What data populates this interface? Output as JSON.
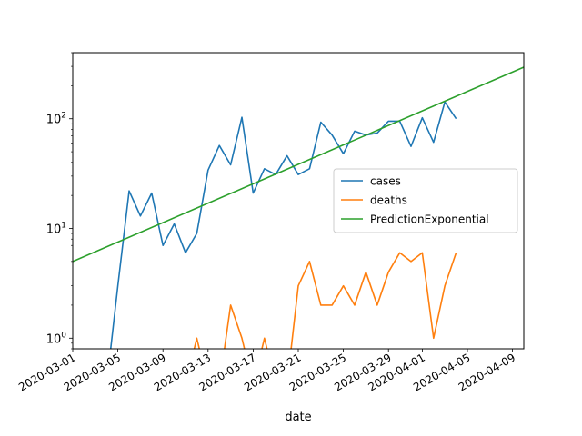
{
  "chart_data": {
    "type": "line",
    "xlabel": "date",
    "ylabel": "",
    "x_scale": "date",
    "y_scale": "log",
    "xlim": [
      "2020-03-01",
      "2020-04-10"
    ],
    "ylim": [
      0.8,
      400
    ],
    "x_ticks": [
      "2020-03-01",
      "2020-03-05",
      "2020-03-09",
      "2020-03-13",
      "2020-03-17",
      "2020-03-21",
      "2020-03-25",
      "2020-03-29",
      "2020-04-01",
      "2020-04-05",
      "2020-04-09"
    ],
    "y_ticks": [
      {
        "value": 1,
        "base": "10",
        "exp": "0"
      },
      {
        "value": 10,
        "base": "10",
        "exp": "1"
      },
      {
        "value": 100,
        "base": "10",
        "exp": "2"
      }
    ],
    "grid": false,
    "legend_position": "center-right",
    "series": [
      {
        "name": "cases",
        "color": "#1f77b4",
        "x": [
          "2020-03-04",
          "2020-03-05",
          "2020-03-06",
          "2020-03-07",
          "2020-03-08",
          "2020-03-09",
          "2020-03-10",
          "2020-03-11",
          "2020-03-12",
          "2020-03-13",
          "2020-03-14",
          "2020-03-15",
          "2020-03-16",
          "2020-03-17",
          "2020-03-18",
          "2020-03-19",
          "2020-03-20",
          "2020-03-21",
          "2020-03-22",
          "2020-03-23",
          "2020-03-24",
          "2020-03-25",
          "2020-03-26",
          "2020-03-27",
          "2020-03-28",
          "2020-03-29",
          "2020-03-30",
          "2020-03-31",
          "2020-04-01",
          "2020-04-02",
          "2020-04-03",
          "2020-04-04"
        ],
        "values": [
          0,
          3,
          22,
          13,
          21,
          7,
          11,
          6,
          9,
          34,
          57,
          38,
          103,
          21,
          35,
          31,
          46,
          31,
          35,
          93,
          71,
          48,
          77,
          71,
          74,
          95,
          95,
          56,
          102,
          61,
          142,
          100
        ]
      },
      {
        "name": "deaths",
        "color": "#ff7f0e",
        "x": [
          "2020-03-11",
          "2020-03-12",
          "2020-03-13",
          "2020-03-14",
          "2020-03-15",
          "2020-03-16",
          "2020-03-17",
          "2020-03-18",
          "2020-03-19",
          "2020-03-20",
          "2020-03-21",
          "2020-03-22",
          "2020-03-23",
          "2020-03-24",
          "2020-03-25",
          "2020-03-26",
          "2020-03-27",
          "2020-03-28",
          "2020-03-29",
          "2020-03-30",
          "2020-03-31",
          "2020-04-01",
          "2020-04-02",
          "2020-04-03",
          "2020-04-04"
        ],
        "values": [
          0,
          1,
          0,
          0,
          2,
          1,
          0,
          1,
          0,
          0,
          3,
          5,
          2,
          2,
          3,
          2,
          4,
          2,
          4,
          6,
          5,
          6,
          1,
          3,
          6
        ]
      },
      {
        "name": "PredictionExponential",
        "color": "#2ca02c",
        "x": [
          "2020-03-01",
          "2020-04-10"
        ],
        "values": [
          5,
          295
        ]
      }
    ]
  }
}
